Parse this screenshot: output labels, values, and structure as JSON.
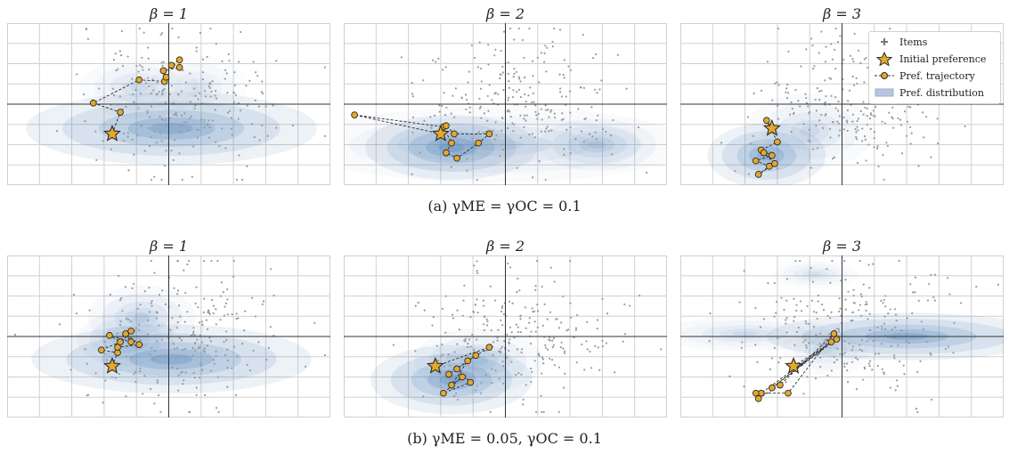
{
  "captions": {
    "a": "(a) γME = γOC = 0.1",
    "b": "(b) γME = 0.05, γOC = 0.1"
  },
  "legend": {
    "items": "Items",
    "initial": "Initial preference",
    "trajectory": "Pref. trajectory",
    "distribution": "Pref. distribution"
  },
  "colors": {
    "items": "#9a9a9a",
    "marker_fill": "#e5a82b",
    "marker_edge": "#2a2a2a",
    "density": "#4a7fb5",
    "grid": "#d0d0d0",
    "axis": "#333333"
  },
  "chart_data": [
    {
      "type": "scatter",
      "row": "a",
      "title": "β = 1",
      "star": [
        -1.05,
        -0.55
      ],
      "trajectory": [
        [
          -1.05,
          -0.55
        ],
        [
          -0.9,
          -0.15
        ],
        [
          -1.4,
          0.02
        ],
        [
          -0.55,
          0.45
        ],
        [
          -0.08,
          0.42
        ],
        [
          -0.1,
          0.62
        ],
        [
          0.2,
          0.68
        ],
        [
          0.2,
          0.82
        ],
        [
          0.05,
          0.72
        ],
        [
          -0.05,
          0.5
        ]
      ],
      "density": [
        {
          "x": 0.05,
          "y": -0.45,
          "sx": 1.35,
          "sy": 0.34,
          "w": 1.0
        },
        {
          "x": -0.55,
          "y": 0.3,
          "sx": 0.55,
          "sy": 0.28,
          "w": 0.35
        },
        {
          "x": 0.55,
          "y": 0.3,
          "sx": 0.45,
          "sy": 0.3,
          "w": 0.25
        }
      ],
      "xlim": [
        -3,
        3
      ],
      "ylim": [
        -1.5,
        1.5
      ]
    },
    {
      "type": "scatter",
      "row": "a",
      "title": "β = 2",
      "star": [
        -1.2,
        -0.55
      ],
      "trajectory": [
        [
          -1.2,
          -0.55
        ],
        [
          -2.8,
          -0.2
        ],
        [
          -1.15,
          -0.42
        ],
        [
          -1.0,
          -0.72
        ],
        [
          -1.1,
          -0.9
        ],
        [
          -0.9,
          -1.0
        ],
        [
          -0.5,
          -0.72
        ],
        [
          -0.3,
          -0.55
        ],
        [
          -0.95,
          -0.55
        ],
        [
          -1.1,
          -0.4
        ]
      ],
      "density": [
        {
          "x": -1.0,
          "y": -0.8,
          "sx": 0.8,
          "sy": 0.3,
          "w": 1.0
        },
        {
          "x": 1.7,
          "y": -0.75,
          "sx": 0.55,
          "sy": 0.24,
          "w": 0.55
        },
        {
          "x": -0.2,
          "y": -0.75,
          "sx": 1.8,
          "sy": 0.35,
          "w": 0.35
        }
      ],
      "xlim": [
        -3,
        3
      ],
      "ylim": [
        -1.5,
        1.5
      ]
    },
    {
      "type": "scatter",
      "row": "a",
      "title": "β = 3",
      "star": [
        -1.3,
        -0.45
      ],
      "trajectory": [
        [
          -1.3,
          -0.45
        ],
        [
          -1.4,
          -0.3
        ],
        [
          -1.2,
          -0.7
        ],
        [
          -1.5,
          -0.85
        ],
        [
          -1.3,
          -0.95
        ],
        [
          -1.6,
          -1.05
        ],
        [
          -1.35,
          -1.15
        ],
        [
          -1.55,
          -1.3
        ],
        [
          -1.25,
          -1.1
        ],
        [
          -1.45,
          -0.9
        ]
      ],
      "density": [
        {
          "x": -1.4,
          "y": -0.95,
          "sx": 0.55,
          "sy": 0.3,
          "w": 1.0
        },
        {
          "x": -0.6,
          "y": -0.5,
          "sx": 0.6,
          "sy": 0.35,
          "w": 0.35
        }
      ],
      "xlim": [
        -3,
        3
      ],
      "ylim": [
        -1.5,
        1.5
      ]
    },
    {
      "type": "scatter",
      "row": "b",
      "title": "β = 1",
      "star": [
        -1.05,
        -0.55
      ],
      "trajectory": [
        [
          -1.05,
          -0.55
        ],
        [
          -0.95,
          -0.3
        ],
        [
          -1.25,
          -0.25
        ],
        [
          -0.9,
          -0.1
        ],
        [
          -1.1,
          0.02
        ],
        [
          -0.7,
          -0.1
        ],
        [
          -0.8,
          0.05
        ],
        [
          -0.55,
          -0.15
        ],
        [
          -0.95,
          -0.2
        ],
        [
          -0.7,
          0.1
        ]
      ],
      "density": [
        {
          "x": 0.05,
          "y": -0.42,
          "sx": 1.3,
          "sy": 0.32,
          "w": 1.0
        },
        {
          "x": -0.5,
          "y": 0.35,
          "sx": 0.5,
          "sy": 0.3,
          "w": 0.45
        },
        {
          "x": -0.8,
          "y": -0.05,
          "sx": 0.45,
          "sy": 0.25,
          "w": 0.45
        }
      ],
      "xlim": [
        -3,
        3
      ],
      "ylim": [
        -1.5,
        1.5
      ]
    },
    {
      "type": "scatter",
      "row": "b",
      "title": "β = 2",
      "star": [
        -1.3,
        -0.55
      ],
      "trajectory": [
        [
          -1.3,
          -0.55
        ],
        [
          -0.3,
          -0.2
        ],
        [
          -0.7,
          -0.45
        ],
        [
          -1.0,
          -0.9
        ],
        [
          -0.8,
          -0.75
        ],
        [
          -1.15,
          -1.05
        ],
        [
          -0.65,
          -0.85
        ],
        [
          -0.9,
          -0.6
        ],
        [
          -0.55,
          -0.35
        ],
        [
          -1.05,
          -0.7
        ]
      ],
      "density": [
        {
          "x": -1.0,
          "y": -0.8,
          "sx": 0.75,
          "sy": 0.32,
          "w": 1.0
        },
        {
          "x": -0.5,
          "y": -0.45,
          "sx": 0.6,
          "sy": 0.3,
          "w": 0.45
        }
      ],
      "xlim": [
        -3,
        3
      ],
      "ylim": [
        -1.5,
        1.5
      ]
    },
    {
      "type": "scatter",
      "row": "b",
      "title": "β = 3",
      "star": [
        -0.9,
        -0.55
      ],
      "trajectory": [
        [
          -0.9,
          -0.55
        ],
        [
          -0.1,
          -0.05
        ],
        [
          -1.3,
          -0.95
        ],
        [
          -0.2,
          -0.1
        ],
        [
          -1.5,
          -1.05
        ],
        [
          -1.6,
          -1.05
        ],
        [
          -1.0,
          -1.05
        ],
        [
          -0.15,
          0.05
        ],
        [
          -1.15,
          -0.9
        ],
        [
          -1.55,
          -1.15
        ]
      ],
      "density": [
        {
          "x": 1.2,
          "y": 0.0,
          "sx": 1.3,
          "sy": 0.22,
          "w": 1.0
        },
        {
          "x": -1.8,
          "y": 0.05,
          "sx": 0.8,
          "sy": 0.16,
          "w": 0.35
        },
        {
          "x": -0.5,
          "y": 1.15,
          "sx": 0.4,
          "sy": 0.13,
          "w": 0.3
        },
        {
          "x": -0.3,
          "y": -0.25,
          "sx": 0.4,
          "sy": 0.25,
          "w": 0.3
        }
      ],
      "xlim": [
        -3,
        3
      ],
      "ylim": [
        -1.5,
        1.5
      ]
    }
  ]
}
